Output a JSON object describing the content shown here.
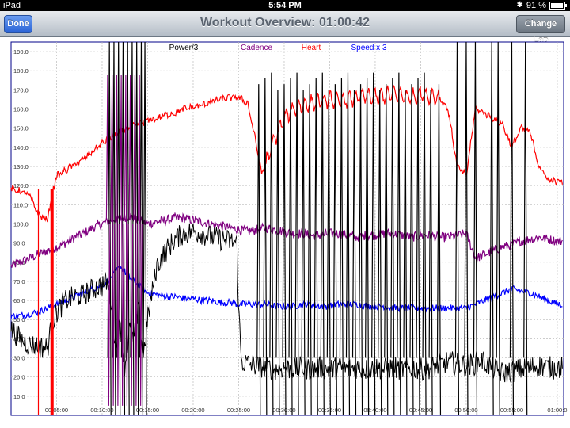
{
  "status_bar": {
    "carrier": "iPad",
    "time": "5:54 PM",
    "bluetooth_icon": "bluetooth-icon",
    "battery_percent": "91 %",
    "battery_level": 0.91
  },
  "nav": {
    "title": "Workout Overview: 01:00:42",
    "done_label": "Done",
    "change_lap_label": "Change Lap"
  },
  "chart_data": {
    "type": "line",
    "title": "",
    "xlabel": "",
    "ylabel": "",
    "xlim_minutes": [
      0,
      60.7
    ],
    "ylim": [
      0,
      195
    ],
    "yticks": [
      "10.0",
      "20.0",
      "30.0",
      "40.0",
      "50.0",
      "60.0",
      "70.0",
      "80.0",
      "90.0",
      "100.0",
      "110.0",
      "120.0",
      "130.0",
      "140.0",
      "150.0",
      "160.0",
      "170.0",
      "180.0",
      "190.0"
    ],
    "xticks": [
      {
        "m": 5,
        "label": "00:05:00"
      },
      {
        "m": 10,
        "label": "00:10:00"
      },
      {
        "m": 15,
        "label": "00:15:00"
      },
      {
        "m": 20,
        "label": "00:20:00"
      },
      {
        "m": 25,
        "label": "00:25:00"
      },
      {
        "m": 30,
        "label": "00:30:00"
      },
      {
        "m": 35,
        "label": "00:35:00"
      },
      {
        "m": 40,
        "label": "00:40:00"
      },
      {
        "m": 45,
        "label": "00:45:00"
      },
      {
        "m": 50,
        "label": "00:50:00"
      },
      {
        "m": 55,
        "label": "00:55:00"
      },
      {
        "m": 60,
        "label": "01:00:0"
      }
    ],
    "grid": true,
    "legend_placement": "top-center",
    "series": [
      {
        "name": "Power/3",
        "color": "#000000",
        "points": [
          [
            0,
            45
          ],
          [
            1,
            40
          ],
          [
            2,
            37
          ],
          [
            3,
            36
          ],
          [
            4,
            35
          ],
          [
            4.5,
            48
          ],
          [
            5,
            54
          ],
          [
            6,
            60
          ],
          [
            7,
            62
          ],
          [
            8,
            63
          ],
          [
            9,
            66
          ],
          [
            10,
            68
          ],
          [
            10.5,
            70
          ],
          [
            11,
            60
          ],
          [
            11.5,
            35
          ],
          [
            12,
            48
          ],
          [
            12.5,
            25
          ],
          [
            13,
            45
          ],
          [
            13.5,
            40
          ],
          [
            14,
            55
          ],
          [
            14.5,
            30
          ],
          [
            15,
            50
          ],
          [
            16,
            78
          ],
          [
            17,
            86
          ],
          [
            18,
            92
          ],
          [
            19,
            95
          ],
          [
            20,
            96
          ],
          [
            21,
            95
          ],
          [
            22,
            93
          ],
          [
            23,
            92
          ],
          [
            24,
            91
          ],
          [
            24.8,
            90
          ],
          [
            25,
            55
          ],
          [
            25.3,
            28
          ],
          [
            26,
            27
          ],
          [
            27,
            26
          ],
          [
            28,
            25
          ],
          [
            29,
            24
          ],
          [
            30,
            25
          ],
          [
            31,
            24
          ],
          [
            32,
            25
          ],
          [
            33,
            24
          ],
          [
            34,
            25
          ],
          [
            35,
            24
          ],
          [
            36,
            25
          ],
          [
            37,
            24
          ],
          [
            38,
            25
          ],
          [
            39,
            24
          ],
          [
            40,
            25
          ],
          [
            41,
            24
          ],
          [
            42,
            25
          ],
          [
            43,
            24
          ],
          [
            44,
            25
          ],
          [
            45,
            24
          ],
          [
            46,
            25
          ],
          [
            47,
            26
          ],
          [
            47.5,
            27
          ],
          [
            48,
            28
          ],
          [
            49,
            27
          ],
          [
            50,
            26
          ],
          [
            51,
            27
          ],
          [
            51.5,
            29
          ],
          [
            52,
            28
          ],
          [
            53,
            24
          ],
          [
            54,
            22
          ],
          [
            55,
            23
          ],
          [
            56,
            24
          ],
          [
            57,
            25
          ],
          [
            58,
            26
          ],
          [
            59,
            25
          ],
          [
            60,
            25
          ]
        ]
      },
      {
        "name": "Cadence",
        "color": "#800080",
        "points": [
          [
            0,
            78
          ],
          [
            1,
            80
          ],
          [
            2,
            82
          ],
          [
            3,
            84
          ],
          [
            4,
            86
          ],
          [
            5,
            88
          ],
          [
            6,
            90
          ],
          [
            7,
            93
          ],
          [
            8,
            95
          ],
          [
            9,
            98
          ],
          [
            10,
            100
          ],
          [
            11,
            102
          ],
          [
            12,
            103
          ],
          [
            13,
            104
          ],
          [
            14,
            102
          ],
          [
            15,
            100
          ],
          [
            16,
            101
          ],
          [
            17,
            102
          ],
          [
            18,
            103
          ],
          [
            19,
            103
          ],
          [
            20,
            102
          ],
          [
            21,
            101
          ],
          [
            22,
            100
          ],
          [
            23,
            99
          ],
          [
            24,
            98
          ],
          [
            25,
            97
          ],
          [
            26,
            96
          ],
          [
            27,
            97
          ],
          [
            28,
            98
          ],
          [
            29,
            97
          ],
          [
            30,
            96
          ],
          [
            31,
            95
          ],
          [
            32,
            95
          ],
          [
            33,
            94
          ],
          [
            34,
            94
          ],
          [
            35,
            95
          ],
          [
            36,
            95
          ],
          [
            37,
            94
          ],
          [
            38,
            93
          ],
          [
            39,
            94
          ],
          [
            40,
            94
          ],
          [
            41,
            95
          ],
          [
            42,
            95
          ],
          [
            43,
            94
          ],
          [
            44,
            93
          ],
          [
            45,
            94
          ],
          [
            46,
            94
          ],
          [
            47,
            93
          ],
          [
            48,
            93
          ],
          [
            49,
            94
          ],
          [
            50,
            95
          ],
          [
            51,
            82
          ],
          [
            52,
            84
          ],
          [
            53,
            86
          ],
          [
            54,
            88
          ],
          [
            55,
            89
          ],
          [
            56,
            91
          ],
          [
            57,
            92
          ],
          [
            58,
            93
          ],
          [
            59,
            92
          ],
          [
            60,
            91
          ]
        ]
      },
      {
        "name": "Heart",
        "color": "#ff0000",
        "points": [
          [
            0,
            118
          ],
          [
            1,
            117
          ],
          [
            2,
            115
          ],
          [
            3,
            105
          ],
          [
            4,
            102
          ],
          [
            4.6,
            118
          ],
          [
            5,
            125
          ],
          [
            6,
            128
          ],
          [
            7,
            131
          ],
          [
            8,
            134
          ],
          [
            9,
            138
          ],
          [
            10,
            142
          ],
          [
            11,
            145
          ],
          [
            12,
            148
          ],
          [
            13,
            150
          ],
          [
            14,
            152
          ],
          [
            15,
            154
          ],
          [
            16,
            155
          ],
          [
            17,
            157
          ],
          [
            18,
            158
          ],
          [
            19,
            160
          ],
          [
            20,
            161
          ],
          [
            21,
            162
          ],
          [
            22,
            164
          ],
          [
            23,
            165
          ],
          [
            24,
            166
          ],
          [
            25,
            166
          ],
          [
            26,
            163
          ],
          [
            27,
            140
          ],
          [
            27.5,
            126
          ],
          [
            28,
            132
          ],
          [
            29,
            145
          ],
          [
            30,
            155
          ],
          [
            31,
            160
          ],
          [
            32,
            162
          ],
          [
            33,
            163
          ],
          [
            34,
            164
          ],
          [
            35,
            165
          ],
          [
            36,
            164
          ],
          [
            37,
            165
          ],
          [
            38,
            166
          ],
          [
            39,
            167
          ],
          [
            40,
            166
          ],
          [
            41,
            167
          ],
          [
            42,
            168
          ],
          [
            43,
            167
          ],
          [
            44,
            166
          ],
          [
            45,
            168
          ],
          [
            46,
            167
          ],
          [
            47,
            166
          ],
          [
            48,
            160
          ],
          [
            49,
            130
          ],
          [
            50,
            125
          ],
          [
            51,
            160
          ],
          [
            52,
            158
          ],
          [
            53,
            155
          ],
          [
            54,
            152
          ],
          [
            55,
            140
          ],
          [
            56,
            150
          ],
          [
            57,
            148
          ],
          [
            58,
            130
          ],
          [
            59,
            123
          ],
          [
            60,
            122
          ]
        ]
      },
      {
        "name": "Speed x 3",
        "color": "#0000ff",
        "points": [
          [
            0,
            52
          ],
          [
            1,
            52
          ],
          [
            2,
            53
          ],
          [
            3,
            54
          ],
          [
            4,
            56
          ],
          [
            5,
            58
          ],
          [
            6,
            60
          ],
          [
            7,
            62
          ],
          [
            8,
            64
          ],
          [
            9,
            66
          ],
          [
            10,
            68
          ],
          [
            11,
            72
          ],
          [
            12,
            78
          ],
          [
            13,
            72
          ],
          [
            14,
            68
          ],
          [
            15,
            64
          ],
          [
            16,
            63
          ],
          [
            17,
            62
          ],
          [
            18,
            62
          ],
          [
            19,
            61
          ],
          [
            20,
            61
          ],
          [
            21,
            60
          ],
          [
            22,
            60
          ],
          [
            23,
            59
          ],
          [
            24,
            59
          ],
          [
            25,
            58
          ],
          [
            26,
            58
          ],
          [
            27,
            58
          ],
          [
            28,
            58
          ],
          [
            29,
            57
          ],
          [
            30,
            57
          ],
          [
            31,
            57
          ],
          [
            32,
            58
          ],
          [
            33,
            58
          ],
          [
            34,
            57
          ],
          [
            35,
            57
          ],
          [
            36,
            58
          ],
          [
            37,
            58
          ],
          [
            38,
            58
          ],
          [
            39,
            57
          ],
          [
            40,
            57
          ],
          [
            41,
            57
          ],
          [
            42,
            56
          ],
          [
            43,
            56
          ],
          [
            44,
            56
          ],
          [
            45,
            56
          ],
          [
            46,
            56
          ],
          [
            47,
            56
          ],
          [
            48,
            56
          ],
          [
            49,
            56
          ],
          [
            50,
            56
          ],
          [
            51,
            58
          ],
          [
            52,
            60
          ],
          [
            53,
            62
          ],
          [
            54,
            64
          ],
          [
            55,
            66
          ],
          [
            56,
            65
          ],
          [
            57,
            64
          ],
          [
            58,
            62
          ],
          [
            59,
            60
          ],
          [
            60,
            58
          ]
        ]
      }
    ],
    "power_spikes_minutes": [
      10.8,
      11.3,
      11.8,
      12.3,
      12.8,
      13.3,
      13.8,
      14.3,
      14.7,
      27.2,
      27.9,
      28.6,
      29.3,
      30.0,
      30.7,
      31.4,
      32.1,
      32.8,
      33.5,
      34.2,
      34.9,
      35.6,
      36.3,
      37.0,
      37.7,
      38.4,
      39.1,
      39.8,
      40.5,
      41.2,
      41.9,
      42.6,
      43.3,
      44.0,
      44.7,
      45.4,
      46.1,
      47.0,
      49.0,
      50.0,
      51.0,
      52.8,
      53.5,
      55.0,
      56.5
    ]
  }
}
